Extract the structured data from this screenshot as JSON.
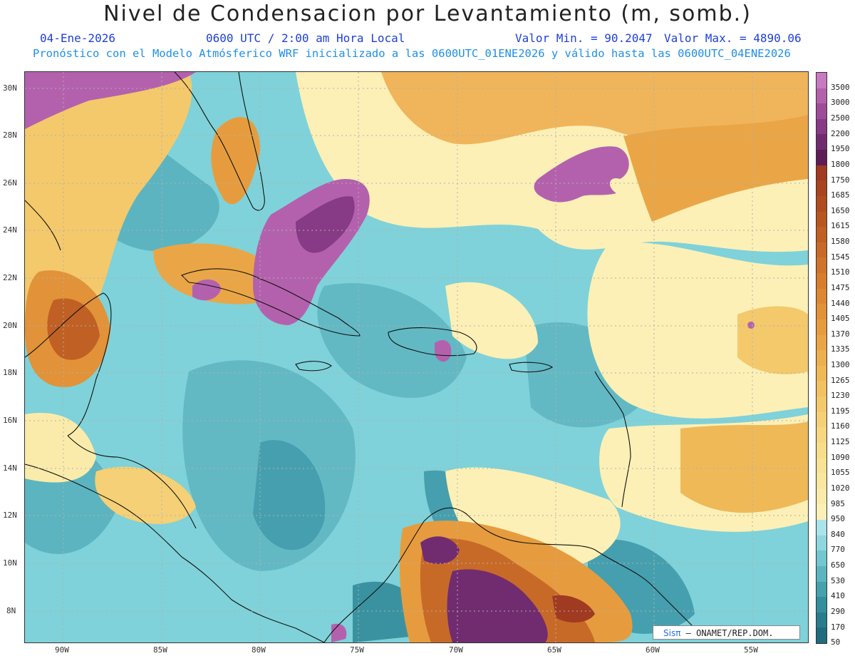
{
  "header": {
    "title": "Nivel de Condensacion por Levantamiento (m, somb.)",
    "date": "04-Ene-2026",
    "time": "0600 UTC / 2:00 am Hora Local",
    "min_value": "Valor Min. = 90.2047",
    "max_value": "Valor Max. = 4890.06",
    "model_info": "Pronóstico con el Modelo Atmósferico WRF inicializado a las 0600UTC_01ENE2026 y válido hasta las  0600UTC_04ENE2026"
  },
  "map": {
    "lat_labels": [
      "30N",
      "28N",
      "26N",
      "24N",
      "22N",
      "20N",
      "18N",
      "16N",
      "14N",
      "12N",
      "10N",
      "8N"
    ],
    "lon_labels": [
      "90W",
      "85W",
      "80W",
      "75W",
      "70W",
      "65W",
      "60W",
      "55W"
    ]
  },
  "colorbar": {
    "labels": [
      "3500",
      "3000",
      "2500",
      "2200",
      "1950",
      "1800",
      "1750",
      "1685",
      "1650",
      "1615",
      "1580",
      "1545",
      "1510",
      "1475",
      "1440",
      "1405",
      "1370",
      "1335",
      "1300",
      "1265",
      "1230",
      "1195",
      "1160",
      "1125",
      "1090",
      "1055",
      "1020",
      "985",
      "950",
      "840",
      "770",
      "650",
      "530",
      "410",
      "290",
      "170",
      "50"
    ],
    "colors": [
      "#c77ac0",
      "#b461ad",
      "#9d4c98",
      "#873a85",
      "#712c70",
      "#5e1d56",
      "#a03a21",
      "#a8441f",
      "#b04d20",
      "#b85622",
      "#c06024",
      "#c86a27",
      "#cf742a",
      "#d67e2e",
      "#dc8833",
      "#e29238",
      "#e69c3e",
      "#eaa646",
      "#edb04f",
      "#efb958",
      "#f1c162",
      "#f3c96c",
      "#f5d076",
      "#f7d781",
      "#f8dd8b",
      "#f9e295",
      "#fae79f",
      "#fbebaa",
      "#fcf0b6",
      "#a9e4eb",
      "#8fd6df",
      "#74c6d0",
      "#5cb4c0",
      "#46a0ae",
      "#368d9c",
      "#2a7c8d",
      "#206b7e"
    ]
  },
  "credit": {
    "logo": "Sisπ",
    "text": " –  ONAMET/REP.DOM."
  }
}
